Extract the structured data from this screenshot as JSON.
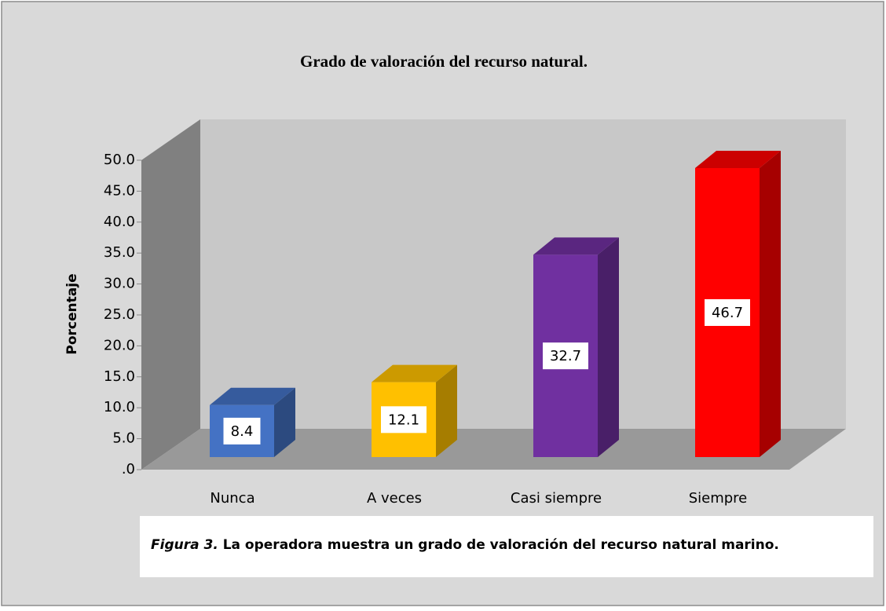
{
  "chart_data": {
    "type": "bar3d",
    "title": "Grado de valoración del recurso natural.",
    "ylabel": "Porcentaje",
    "categories": [
      "Nunca",
      "A veces",
      "Casi siempre",
      "Siempre"
    ],
    "values": [
      8.4,
      12.1,
      32.7,
      46.7
    ],
    "colors": [
      "#4472c4",
      "#ffc000",
      "#7030a0",
      "#ff0000"
    ],
    "ylim": [
      0,
      50
    ],
    "yticks": [
      {
        "value": 0,
        "label": ".0"
      },
      {
        "value": 5,
        "label": "5.0"
      },
      {
        "value": 10,
        "label": "10.0"
      },
      {
        "value": 15,
        "label": "15.0"
      },
      {
        "value": 20,
        "label": "20.0"
      },
      {
        "value": 25,
        "label": "25.0"
      },
      {
        "value": 30,
        "label": "30.0"
      },
      {
        "value": 35,
        "label": "35.0"
      },
      {
        "value": 40,
        "label": "40.0"
      },
      {
        "value": 45,
        "label": "45.0"
      },
      {
        "value": 50,
        "label": "50.0"
      }
    ],
    "grid": false,
    "caption": {
      "label": "Figura 3.",
      "text": "La operadora muestra un grado de valoración del recurso natural marino."
    }
  }
}
